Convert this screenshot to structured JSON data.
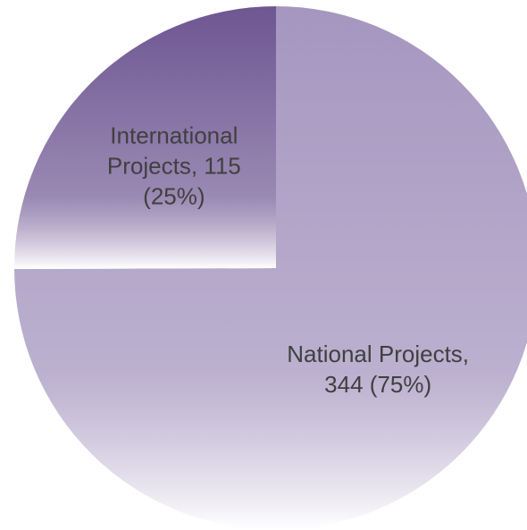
{
  "chart_data": {
    "type": "pie",
    "categories": [
      "National Projects",
      "International Projects"
    ],
    "values": [
      344,
      115
    ],
    "value_labels": [
      "National Projects, 344 (75%)",
      "International Projects, 115 (25%)"
    ],
    "colors": [
      "#a596bf",
      "#6e5692"
    ]
  }
}
